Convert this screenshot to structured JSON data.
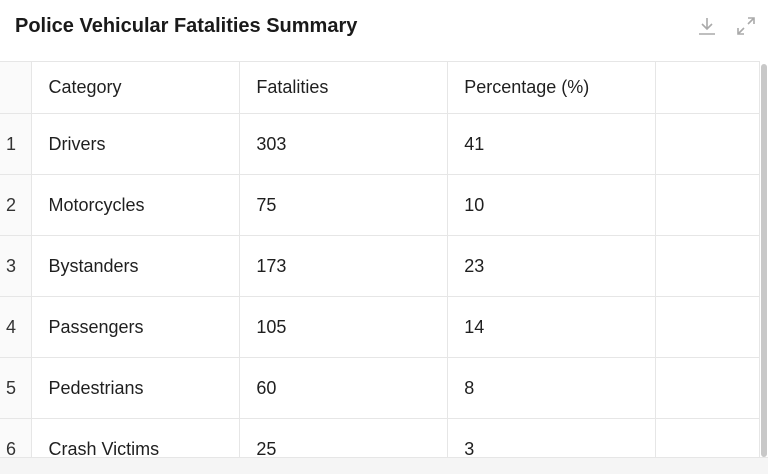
{
  "title": "Police Vehicular Fatalities Summary",
  "icons": {
    "download": "download-icon",
    "expand": "expand-icon"
  },
  "table": {
    "headers": [
      "Category",
      "Fatalities",
      "Percentage (%)"
    ],
    "rows": [
      {
        "index": "1",
        "category": "Drivers",
        "fatalities": "303",
        "percentage": "41"
      },
      {
        "index": "2",
        "category": "Motorcycles",
        "fatalities": "75",
        "percentage": "10"
      },
      {
        "index": "3",
        "category": "Bystanders",
        "fatalities": "173",
        "percentage": "23"
      },
      {
        "index": "4",
        "category": "Passengers",
        "fatalities": "105",
        "percentage": "14"
      },
      {
        "index": "5",
        "category": "Pedestrians",
        "fatalities": "60",
        "percentage": "8"
      },
      {
        "index": "6",
        "category": "Crash Victims",
        "fatalities": "25",
        "percentage": "3"
      }
    ]
  }
}
